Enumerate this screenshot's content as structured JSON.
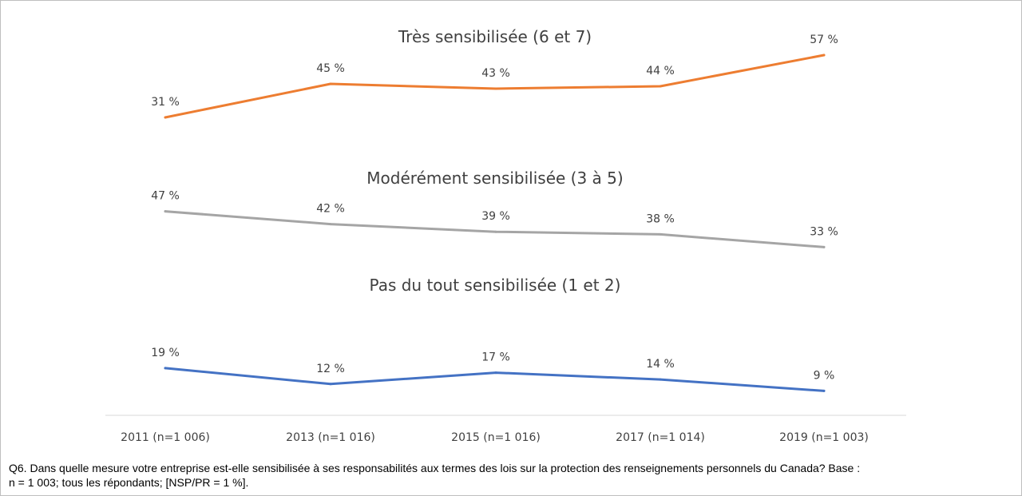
{
  "chart_data": {
    "type": "line",
    "categories": [
      "2011 (n=1 006)",
      "2013 (n=1 016)",
      "2015 (n=1 016)",
      "2017 (n=1 014)",
      "2019 (n=1 003)"
    ],
    "series": [
      {
        "name": "Très sensibilisée (6 et 7)",
        "values": [
          31,
          45,
          43,
          44,
          57
        ],
        "labels": [
          "31 %",
          "45 %",
          "43 %",
          "44 %",
          "57 %"
        ],
        "color": "#ed7d31"
      },
      {
        "name": "Modérément sensibilisée (3 à 5)",
        "values": [
          47,
          42,
          39,
          38,
          33
        ],
        "labels": [
          "47 %",
          "42 %",
          "39 %",
          "38 %",
          "33 %"
        ],
        "color": "#a5a5a5"
      },
      {
        "name": "Pas du tout sensibilisée (1 et 2)",
        "values": [
          19,
          12,
          17,
          14,
          9
        ],
        "labels": [
          "19 %",
          "12 %",
          "17 %",
          "14 %",
          "9 %"
        ],
        "color": "#4472c4"
      }
    ],
    "grid": false,
    "legend": "none"
  },
  "caption": {
    "line1": "Q6. Dans quelle mesure votre entreprise est-elle sensibilisée à ses responsabilités aux termes des lois sur la protection des renseignements personnels du Canada? Base :",
    "line2": "n = 1 003; tous les répondants;  [NSP/PR = 1 %]."
  }
}
